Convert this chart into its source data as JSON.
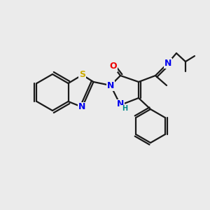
{
  "background_color": "#ebebeb",
  "line_color": "#1a1a1a",
  "bond_width": 1.6,
  "atom_colors": {
    "N": "#0000ee",
    "O": "#ee0000",
    "S": "#ccaa00",
    "H": "#008888",
    "C": "#1a1a1a"
  },
  "figsize": [
    3.0,
    3.0
  ],
  "dpi": 100
}
